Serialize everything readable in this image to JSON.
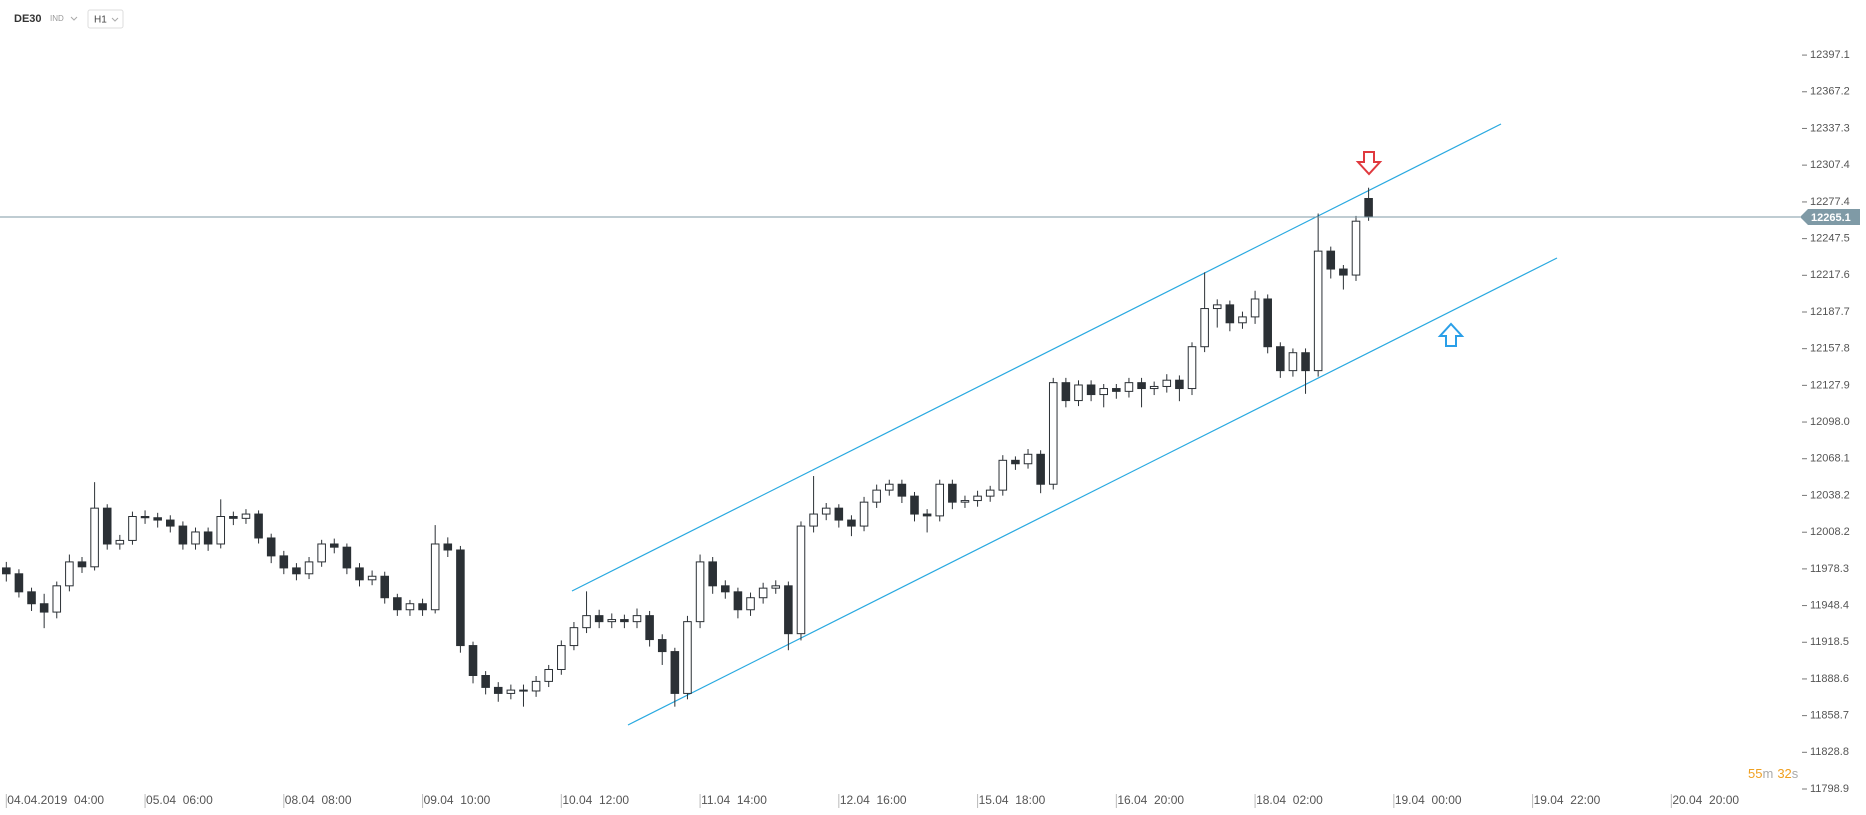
{
  "header": {
    "symbol": "DE30",
    "market": "IND",
    "interval": "H1"
  },
  "countdown": [
    "55",
    "m",
    "32",
    "s"
  ],
  "chart_data": {
    "type": "candlestick",
    "current_price": 12265.1,
    "up_color": "#ffffff",
    "down_color": "#2b3035",
    "outline_color": "#2b3035",
    "price_line_color": "#7f9aa6",
    "xlim": [
      -0.5,
      142.2
    ],
    "xticks": [
      {
        "value": 0,
        "label": "04.04.2019  04:00"
      },
      {
        "value": 11,
        "label": "05.04  06:00"
      },
      {
        "value": 22,
        "label": "08.04  08:00"
      },
      {
        "value": 33,
        "label": "09.04  10:00"
      },
      {
        "value": 44,
        "label": "10.04  12:00"
      },
      {
        "value": 55,
        "label": "11.04  14:00"
      },
      {
        "value": 66,
        "label": "12.04  16:00"
      },
      {
        "value": 77,
        "label": "15.04  18:00"
      },
      {
        "value": 88,
        "label": "16.04  20:00"
      },
      {
        "value": 99,
        "label": "18.04  02:00"
      },
      {
        "value": 110,
        "label": "19.04  00:00"
      },
      {
        "value": 121,
        "label": "19.04  22:00"
      },
      {
        "value": 132,
        "label": "20.04  20:00"
      }
    ],
    "ylim": [
      11794,
      12442
    ],
    "yticks": [
      12397.1,
      12367.2,
      12337.3,
      12307.4,
      12277.4,
      12247.5,
      12217.6,
      12187.7,
      12157.8,
      12127.9,
      {
        "value": 12098,
        "label": "12098.0"
      },
      12068.1,
      12038.2,
      12008.2,
      11978.3,
      11948.4,
      11918.5,
      11888.6,
      11858.7,
      11828.8,
      11798.9
    ],
    "open": [
      11979.1,
      11974.3,
      11959.6,
      11949.9,
      11943.1,
      11964.5,
      11984.0,
      11980.0,
      12027.8,
      11998.6,
      12001.5,
      12021.0,
      12020.0,
      12018.1,
      12013.2,
      11998.6,
      12008.4,
      11998.6,
      12021.0,
      12019.5,
      12023.0,
      12003.5,
      11988.9,
      11979.1,
      11974.3,
      11984.0,
      11998.6,
      11996.0,
      11979.1,
      11969.4,
      11972.3,
      11954.8,
      11945.0,
      11949.9,
      11945.0,
      11998.6,
      11993.7,
      11915.8,
      11891.4,
      11881.7,
      11876.8,
      11879.5,
      11878.8,
      11886.6,
      11896.3,
      11915.8,
      11930.4,
      11940.2,
      11935.3,
      11937.0,
      11935.3,
      11940.2,
      11920.7,
      11910.9,
      11876.8,
      11935.3,
      11984.0,
      11964.5,
      11959.6,
      11945.0,
      11954.8,
      11962.6,
      11964.5,
      11925.5,
      12013.2,
      12023.0,
      12027.8,
      12018.1,
      12013.2,
      12032.7,
      12042.5,
      12047.3,
      12037.6,
      12023.0,
      12021.5,
      12047.3,
      12032.7,
      12034.0,
      12037.6,
      12042.5,
      12066.8,
      12064.0,
      12071.7,
      12047.3,
      12130.1,
      12115.5,
      12128.2,
      12120.4,
      12125.3,
      12123.0,
      12130.1,
      12125.3,
      12127.0,
      12132.1,
      12125.3,
      12159.4,
      12190.5,
      12193.5,
      12178.9,
      12183.7,
      12198.3,
      12159.4,
      12139.9,
      12154.5,
      12139.9,
      12237.3,
      12222.7,
      12217.8,
      12280.2
    ],
    "close": [
      11974.3,
      11959.6,
      11949.9,
      11943.1,
      11964.5,
      11984.0,
      11980.0,
      12027.8,
      11998.6,
      12001.5,
      12021.0,
      12020.0,
      12018.1,
      12013.2,
      11998.6,
      12008.4,
      11998.6,
      12021.0,
      12019.5,
      12023.0,
      12003.5,
      11988.9,
      11979.1,
      11974.3,
      11984.0,
      11998.6,
      11996.0,
      11979.1,
      11969.4,
      11972.3,
      11954.8,
      11945.0,
      11949.9,
      11945.0,
      11998.6,
      11993.7,
      11915.8,
      11891.4,
      11881.7,
      11876.8,
      11879.5,
      11878.8,
      11886.6,
      11896.3,
      11915.8,
      11930.4,
      11940.2,
      11935.3,
      11937.0,
      11935.3,
      11940.2,
      11920.7,
      11910.9,
      11876.8,
      11935.3,
      11984.0,
      11964.5,
      11959.6,
      11945.0,
      11954.8,
      11962.6,
      11964.5,
      11925.5,
      12013.2,
      12023.0,
      12027.8,
      12018.1,
      12013.2,
      12032.7,
      12042.5,
      12047.3,
      12037.6,
      12023.0,
      12021.5,
      12047.3,
      12032.7,
      12034.0,
      12037.6,
      12042.5,
      12066.8,
      12064.0,
      12071.7,
      12047.3,
      12130.1,
      12115.5,
      12128.2,
      12120.4,
      12125.3,
      12123.0,
      12130.1,
      12125.3,
      12127.0,
      12132.1,
      12125.3,
      12159.4,
      12190.5,
      12193.5,
      12178.9,
      12183.7,
      12198.3,
      12159.4,
      12139.9,
      12154.5,
      12139.9,
      12237.3,
      12222.7,
      12217.8,
      12261.7,
      12265.1
    ],
    "high": [
      11984,
      11978,
      11963,
      11958,
      11968,
      11990,
      11988,
      12049,
      12031,
      12006,
      12025,
      12026,
      12024,
      12022,
      12017,
      12012,
      12012,
      12035,
      12025,
      12027,
      12026,
      12007,
      11993,
      11983,
      11988,
      12002,
      12003,
      11999,
      11983,
      11977,
      11976,
      11958,
      11953,
      11954,
      12014,
      12004,
      11997,
      11919,
      11895,
      11886,
      11884,
      11884,
      11891,
      11900,
      11920,
      11935,
      11960,
      11945,
      11942,
      11941,
      11946,
      11944,
      11925,
      11914,
      11940,
      11990,
      11988,
      11969,
      11963,
      11959,
      11967,
      11969,
      11968,
      12017,
      12054,
      12032,
      12031,
      12022,
      12037,
      12047,
      12051,
      12051,
      12041,
      12027,
      12051,
      12051,
      12038,
      12042,
      12046,
      12071,
      12070,
      12076,
      12075,
      12134,
      12134,
      12132,
      12132,
      12129,
      12129,
      12134,
      12134,
      12131,
      12137,
      12136,
      12163,
      12220,
      12198,
      12197,
      12188,
      12205,
      12202,
      12163,
      12158,
      12158,
      12268,
      12241,
      12226,
      12266,
      12289
    ],
    "low": [
      11968,
      11955,
      11944,
      11930,
      11938,
      11960,
      11975,
      11977,
      11994,
      11994,
      11998,
      12015,
      12012,
      12008,
      11994,
      11994,
      11993,
      11995,
      12014,
      12015,
      11999,
      11983,
      11974,
      11969,
      11970,
      11980,
      11991,
      11974,
      11964,
      11965,
      11950,
      11940,
      11940,
      11940,
      11942,
      11988,
      11910,
      11885,
      11876,
      11870,
      11872,
      11866,
      11874,
      11882,
      11892,
      11912,
      11926,
      11930,
      11930,
      11930,
      11930,
      11915,
      11900,
      11866,
      11872,
      11930,
      11958,
      11954,
      11938,
      11940,
      11950,
      11958,
      11912,
      11920,
      12008,
      12018,
      12012,
      12005,
      12009,
      12028,
      12038,
      12032,
      12017,
      12008,
      12017,
      12027,
      12028,
      12029,
      12033,
      12038,
      12059,
      12060,
      12040,
      12043,
      12110,
      12111,
      12115,
      12110,
      12117,
      12118,
      12110,
      12120,
      12122,
      12115,
      12120,
      12155,
      12175,
      12172,
      12174,
      12178,
      12154,
      12134,
      12135,
      12121,
      12135,
      12215,
      12206,
      12213,
      12262
    ]
  }
}
